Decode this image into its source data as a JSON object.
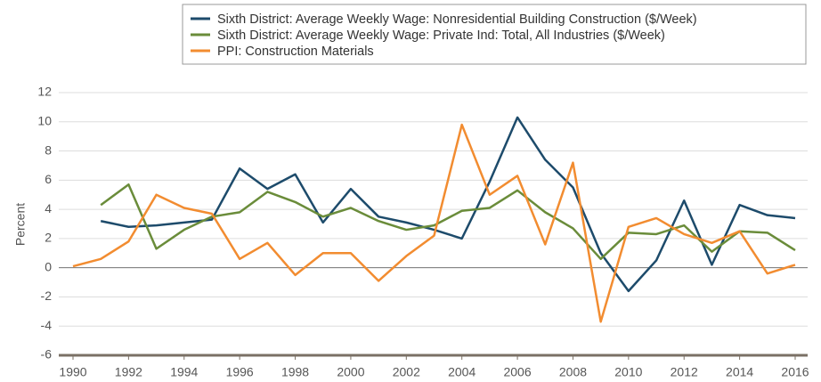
{
  "chart_data": {
    "type": "line",
    "ylabel": "Percent",
    "x": [
      1990,
      1991,
      1992,
      1993,
      1994,
      1995,
      1996,
      1997,
      1998,
      1999,
      2000,
      2001,
      2002,
      2003,
      2004,
      2005,
      2006,
      2007,
      2008,
      2009,
      2010,
      2011,
      2012,
      2013,
      2014,
      2015,
      2016
    ],
    "series": [
      {
        "name": "Sixth District: Average Weekly Wage: Nonresidential Building Construction ($/Week)",
        "color": "#1d4b6b",
        "values": [
          null,
          3.2,
          2.8,
          2.9,
          3.1,
          3.3,
          6.8,
          5.4,
          6.4,
          3.1,
          5.4,
          3.5,
          3.1,
          2.6,
          2.0,
          5.9,
          10.3,
          7.4,
          5.5,
          1.0,
          -1.6,
          0.5,
          4.6,
          0.2,
          4.3,
          3.6,
          3.4
        ]
      },
      {
        "name": "Sixth District: Average Weekly Wage: Private Ind: Total, All Industries ($/Week)",
        "color": "#6a8c3a",
        "values": [
          null,
          4.3,
          5.7,
          1.3,
          2.6,
          3.5,
          3.8,
          5.2,
          4.5,
          3.5,
          4.1,
          3.2,
          2.6,
          2.9,
          3.9,
          4.1,
          5.3,
          3.8,
          2.7,
          0.6,
          2.4,
          2.3,
          2.9,
          1.1,
          2.5,
          2.4,
          1.2
        ]
      },
      {
        "name": "PPI: Construction Materials",
        "color": "#f28c30",
        "values": [
          0.1,
          0.6,
          1.8,
          5.0,
          4.1,
          3.7,
          0.6,
          1.7,
          -0.5,
          1.0,
          1.0,
          -0.9,
          0.8,
          2.2,
          9.8,
          5.0,
          6.3,
          1.6,
          7.2,
          -3.7,
          2.8,
          3.4,
          2.3,
          1.7,
          2.5,
          -0.4,
          0.2
        ]
      }
    ],
    "xlim": [
      1990,
      2016
    ],
    "xticks": [
      1990,
      1992,
      1994,
      1996,
      1998,
      2000,
      2002,
      2004,
      2006,
      2008,
      2010,
      2012,
      2014,
      2016
    ],
    "ylim": [
      -6,
      12
    ],
    "yticks": [
      -6,
      -4,
      -2,
      0,
      2,
      4,
      6,
      8,
      10,
      12
    ],
    "grid": true,
    "legend": "top"
  }
}
